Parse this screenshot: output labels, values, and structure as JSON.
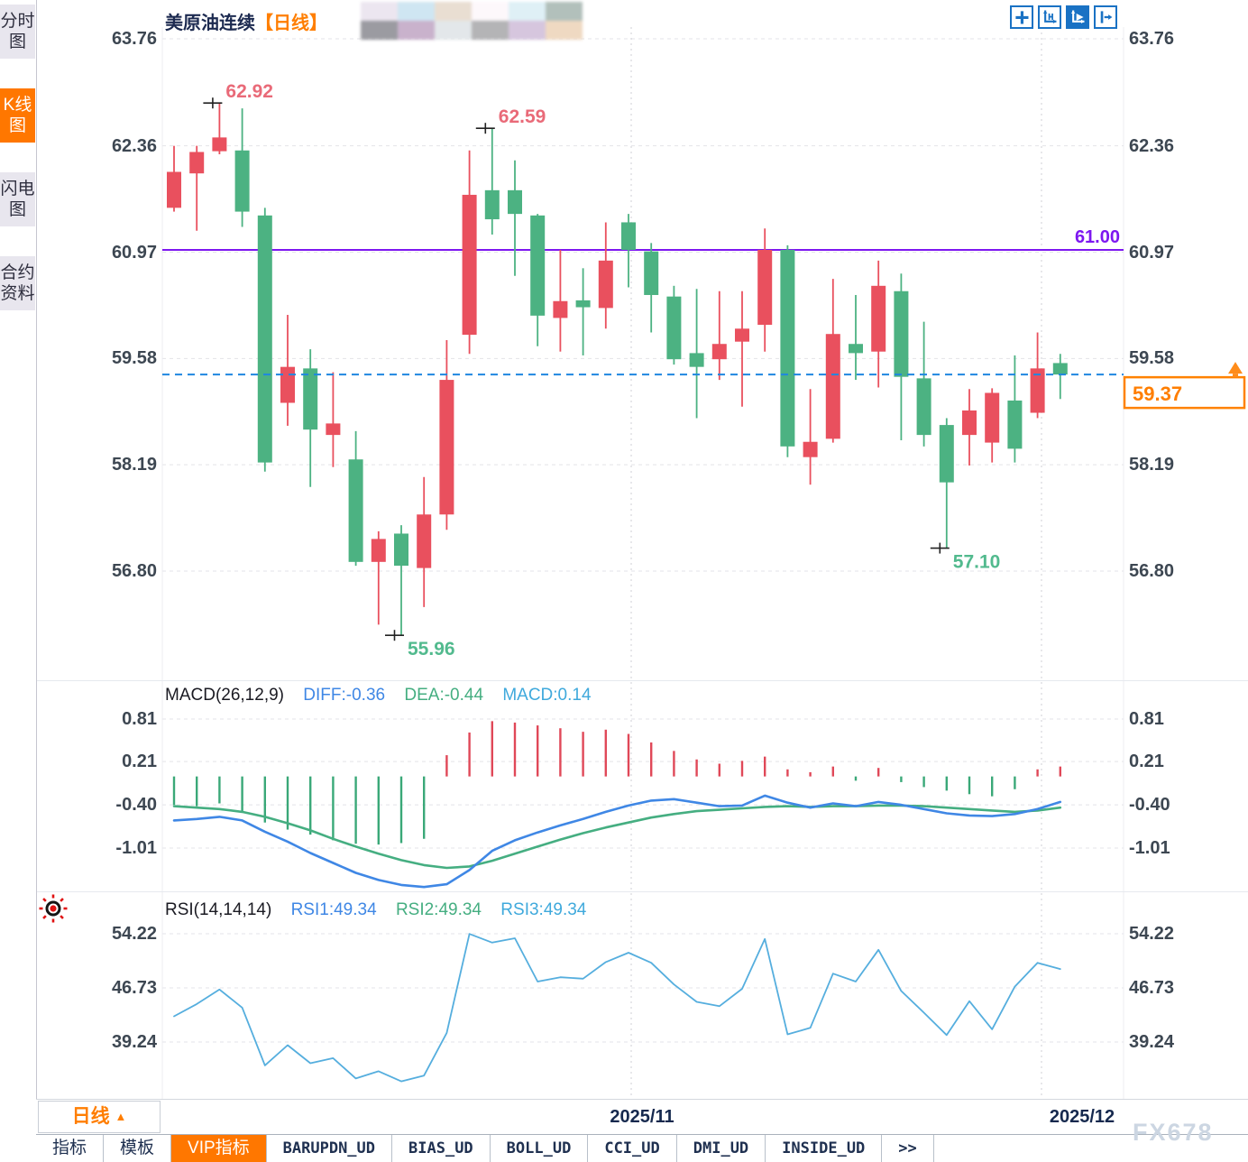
{
  "header": {
    "symbol": "美原油连续",
    "period_tag": "【日线】",
    "redacted_colors": [
      "#ece6f0",
      "#9b9ba1",
      "#cfe6f2",
      "#c9b2cc",
      "#e9ded2",
      "#e3e7ea",
      "#fdf8fb",
      "#b4b4b6",
      "#dff0f6",
      "#d6c6de",
      "#b2c0bb",
      "#efd9c2"
    ],
    "toolbar_icons": [
      "move-icon",
      "axis-zoom-icon",
      "auto-scale-icon",
      "exit-right-icon"
    ]
  },
  "sidebar": {
    "tabs": [
      {
        "label": "分时图",
        "active": false
      },
      {
        "label": "K线图",
        "active": true
      },
      {
        "label": "闪电图",
        "active": false
      },
      {
        "label": "合约资料",
        "active": false
      }
    ]
  },
  "axes": {
    "price": {
      "labels": [
        "63.76",
        "62.36",
        "60.97",
        "59.58",
        "58.19",
        "56.80"
      ]
    },
    "macd": {
      "labels": [
        "0.81",
        "0.21",
        "-0.40",
        "-1.01"
      ]
    },
    "rsi": {
      "labels": [
        "54.22",
        "46.73",
        "39.24"
      ]
    },
    "x": {
      "labels": [
        "2025/11",
        "2025/12"
      ]
    }
  },
  "chart_data": {
    "type": "candlestick",
    "symbol": "美原油连续",
    "period": "日线",
    "ylim": [
      55.3,
      63.9
    ],
    "colors": {
      "up": "#e9505e",
      "down": "#4cb282",
      "level_line": "#7d17f0",
      "last_price_line": "#1f86e0",
      "accent": "#ff7e00",
      "diff_line": "#3f87e5",
      "dea_line": "#45ae81",
      "rsi_line": "#55aede"
    },
    "candles_ohlc": [
      [
        61.55,
        62.36,
        61.5,
        62.02
      ],
      [
        62.0,
        62.36,
        61.25,
        62.28
      ],
      [
        62.29,
        62.92,
        62.25,
        62.47
      ],
      [
        62.3,
        62.85,
        61.3,
        61.5
      ],
      [
        61.45,
        61.55,
        58.1,
        58.22
      ],
      [
        59.0,
        60.15,
        58.7,
        59.47
      ],
      [
        59.45,
        59.7,
        57.9,
        58.65
      ],
      [
        58.58,
        59.4,
        58.16,
        58.73
      ],
      [
        58.26,
        58.63,
        56.87,
        56.92
      ],
      [
        56.92,
        57.32,
        56.1,
        57.22
      ],
      [
        57.29,
        57.4,
        55.96,
        56.87
      ],
      [
        56.84,
        58.03,
        56.33,
        57.54
      ],
      [
        57.54,
        59.82,
        57.34,
        59.3
      ],
      [
        59.89,
        62.3,
        59.64,
        61.72
      ],
      [
        61.78,
        62.59,
        61.2,
        61.4
      ],
      [
        61.78,
        62.17,
        60.66,
        61.47
      ],
      [
        61.45,
        61.47,
        59.74,
        60.14
      ],
      [
        60.11,
        61.0,
        59.67,
        60.33
      ],
      [
        60.34,
        60.76,
        59.62,
        60.25
      ],
      [
        60.24,
        61.36,
        59.97,
        60.86
      ],
      [
        61.36,
        61.47,
        60.51,
        61.0
      ],
      [
        60.98,
        61.09,
        59.92,
        60.41
      ],
      [
        60.39,
        60.53,
        59.5,
        59.57
      ],
      [
        59.65,
        60.49,
        58.8,
        59.47
      ],
      [
        59.57,
        60.46,
        59.3,
        59.77
      ],
      [
        59.8,
        60.46,
        58.95,
        59.97
      ],
      [
        60.02,
        61.28,
        59.67,
        61.0
      ],
      [
        61.0,
        61.06,
        58.29,
        58.43
      ],
      [
        58.29,
        59.18,
        57.93,
        58.49
      ],
      [
        58.53,
        60.62,
        58.48,
        59.9
      ],
      [
        59.77,
        60.41,
        59.3,
        59.65
      ],
      [
        59.67,
        60.86,
        59.2,
        60.53
      ],
      [
        60.46,
        60.69,
        58.51,
        59.34
      ],
      [
        59.32,
        60.06,
        58.43,
        58.58
      ],
      [
        58.71,
        58.8,
        57.1,
        57.96
      ],
      [
        58.58,
        59.18,
        58.18,
        58.9
      ],
      [
        58.48,
        59.19,
        58.22,
        59.13
      ],
      [
        59.03,
        59.62,
        58.22,
        58.4
      ],
      [
        58.87,
        59.92,
        58.8,
        59.45
      ],
      [
        59.52,
        59.64,
        59.05,
        59.37
      ]
    ],
    "annotations": [
      {
        "text": "62.92",
        "candle": 2,
        "type": "high"
      },
      {
        "text": "62.59",
        "candle": 14,
        "type": "high"
      },
      {
        "text": "55.96",
        "candle": 10,
        "type": "low"
      },
      {
        "text": "57.10",
        "candle": 34,
        "type": "low"
      }
    ],
    "level_line": {
      "value": 61.0,
      "label": "61.00"
    },
    "last_price": {
      "value": 59.37,
      "label": "59.37"
    },
    "macd": {
      "title": "MACD(26,12,9)",
      "diff_label": "DIFF:-0.36",
      "dea_label": "DEA:-0.44",
      "macd_label": "MACD:0.14",
      "hist": [
        -0.4,
        -0.42,
        -0.38,
        -0.5,
        -0.65,
        -0.75,
        -0.82,
        -0.9,
        -0.95,
        -0.96,
        -0.94,
        -0.88,
        0.3,
        0.62,
        0.78,
        0.76,
        0.72,
        0.68,
        0.63,
        0.66,
        0.6,
        0.48,
        0.36,
        0.24,
        0.18,
        0.22,
        0.28,
        0.1,
        0.06,
        0.14,
        -0.06,
        0.12,
        -0.08,
        -0.15,
        -0.2,
        -0.25,
        -0.28,
        -0.18,
        0.1,
        0.14
      ],
      "diff": [
        -0.62,
        -0.6,
        -0.57,
        -0.62,
        -0.78,
        -0.92,
        -1.08,
        -1.22,
        -1.36,
        -1.46,
        -1.53,
        -1.56,
        -1.52,
        -1.32,
        -1.05,
        -0.9,
        -0.79,
        -0.69,
        -0.6,
        -0.5,
        -0.41,
        -0.34,
        -0.32,
        -0.37,
        -0.42,
        -0.41,
        -0.27,
        -0.37,
        -0.44,
        -0.38,
        -0.42,
        -0.36,
        -0.4,
        -0.46,
        -0.52,
        -0.55,
        -0.56,
        -0.53,
        -0.46,
        -0.36
      ],
      "dea": [
        -0.42,
        -0.44,
        -0.46,
        -0.5,
        -0.57,
        -0.66,
        -0.76,
        -0.88,
        -0.99,
        -1.09,
        -1.18,
        -1.25,
        -1.29,
        -1.27,
        -1.19,
        -1.09,
        -0.99,
        -0.89,
        -0.8,
        -0.72,
        -0.65,
        -0.58,
        -0.53,
        -0.49,
        -0.47,
        -0.45,
        -0.43,
        -0.42,
        -0.43,
        -0.42,
        -0.42,
        -0.41,
        -0.41,
        -0.42,
        -0.44,
        -0.46,
        -0.48,
        -0.5,
        -0.48,
        -0.44
      ]
    },
    "rsi": {
      "title": "RSI(14,14,14)",
      "rsi1_label": "RSI1:49.34",
      "rsi2_label": "RSI2:49.34",
      "rsi3_label": "RSI3:49.34",
      "values": [
        42.8,
        44.5,
        46.5,
        44.0,
        36.0,
        38.8,
        36.3,
        37.0,
        34.2,
        35.2,
        33.8,
        34.6,
        40.5,
        54.2,
        53.0,
        53.6,
        47.6,
        48.2,
        48.0,
        50.3,
        51.6,
        50.2,
        47.2,
        44.8,
        44.2,
        46.6,
        53.5,
        40.3,
        41.2,
        48.7,
        47.6,
        52.0,
        46.3,
        43.3,
        40.2,
        44.9,
        41.0,
        46.9,
        50.2,
        49.34
      ]
    }
  },
  "bottom": {
    "period_button": "日线",
    "x_labels": [
      "2025/11",
      "2025/12"
    ],
    "tabs": [
      {
        "label": "指标",
        "active": false,
        "mono": false
      },
      {
        "label": "模板",
        "active": false,
        "mono": false
      },
      {
        "label": "VIP指标",
        "active": true,
        "mono": false
      },
      {
        "label": "BARUPDN_UD",
        "active": false,
        "mono": true
      },
      {
        "label": "BIAS_UD",
        "active": false,
        "mono": true
      },
      {
        "label": "BOLL_UD",
        "active": false,
        "mono": true
      },
      {
        "label": "CCI_UD",
        "active": false,
        "mono": true
      },
      {
        "label": "DMI_UD",
        "active": false,
        "mono": true
      },
      {
        "label": "INSIDE_UD",
        "active": false,
        "mono": true
      },
      {
        "label": ">>",
        "active": false,
        "mono": true
      }
    ]
  },
  "watermark": "FX678"
}
